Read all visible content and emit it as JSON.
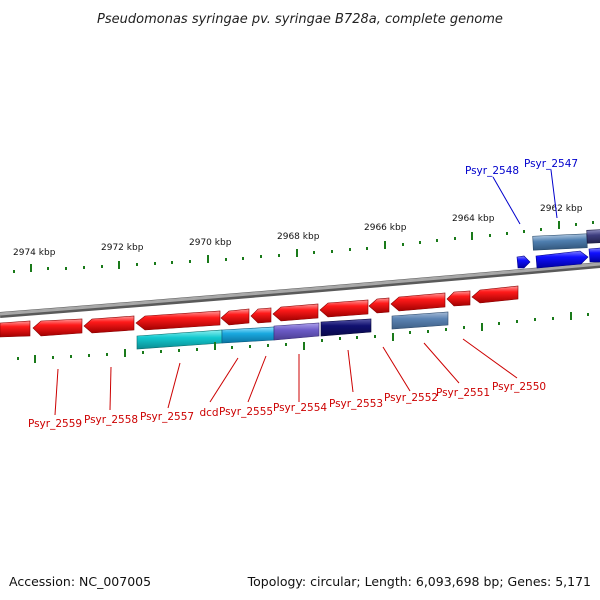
{
  "title": "Pseudomonas syringae pv. syringae B728a, complete genome",
  "footer": {
    "accession": "Accession: NC_007005",
    "topology": "Topology: circular; Length: 6,093,698 bp; Genes: 5,171"
  },
  "colors": {
    "forward_gene": "#ff0000",
    "reverse_gene": "#ff0000",
    "backbone": "#8a8a8a",
    "ticks": "#1a7a1a",
    "label_red": "#cc0000",
    "label_blue": "#0000cc"
  },
  "scale": {
    "ticks": [
      "2974 kbp",
      "2972 kbp",
      "2970 kbp",
      "2968 kbp",
      "2966 kbp",
      "2964 kbp",
      "2962 kbp"
    ]
  },
  "genes": [
    {
      "name": "Psyr_2559",
      "color": "red"
    },
    {
      "name": "Psyr_2558",
      "color": "red"
    },
    {
      "name": "Psyr_2557",
      "color": "red"
    },
    {
      "name": "dcd",
      "color": "red"
    },
    {
      "name": "Psyr_2555",
      "color": "red"
    },
    {
      "name": "Psyr_2554",
      "color": "red"
    },
    {
      "name": "Psyr_2553",
      "color": "red"
    },
    {
      "name": "Psyr_2552",
      "color": "red"
    },
    {
      "name": "Psyr_2551",
      "color": "red"
    },
    {
      "name": "Psyr_2550",
      "color": "red"
    },
    {
      "name": "Psyr_2548",
      "color": "blue"
    },
    {
      "name": "Psyr_2547",
      "color": "blue"
    }
  ]
}
